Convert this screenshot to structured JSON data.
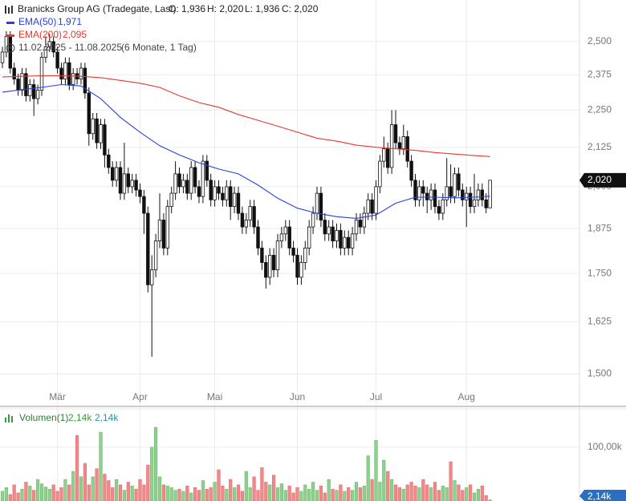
{
  "chart_data": [
    {
      "type": "candlestick",
      "title": "Branicks Group AG (Tradegate, Last)",
      "ohlc_labels": [
        "O: 1,936",
        "H: 2,020",
        "L: 1,936",
        "C: 2,020"
      ],
      "date_range": "11.02.2025 - 11.08.2025",
      "period": "(6 Monate, 1 Tag)",
      "open": [
        2.42,
        2.46,
        2.52,
        2.4,
        2.36,
        2.32,
        2.38,
        2.3,
        2.34,
        2.29,
        2.32,
        2.44,
        2.48,
        2.5,
        2.46,
        2.4,
        2.36,
        2.42,
        2.34,
        2.38,
        2.36,
        2.4,
        2.31,
        2.17,
        2.22,
        2.14,
        2.2,
        2.1,
        2.06,
        2.02,
        2.06,
        1.98,
        2.04,
        2.0,
        2.02,
        1.99,
        1.97,
        1.92,
        1.72,
        1.76,
        1.84,
        1.9,
        1.82,
        1.94,
        1.98,
        2.04,
        2.0,
        2.02,
        1.98,
        2.06,
        2.0,
        1.97,
        2.08,
        2.02,
        1.96,
        2.0,
        1.98,
        1.96,
        2.0,
        1.94,
        1.98,
        1.92,
        1.88,
        1.9,
        1.94,
        1.88,
        1.82,
        1.78,
        1.74,
        1.8,
        1.76,
        1.84,
        1.86,
        1.88,
        1.82,
        1.8,
        1.74,
        1.78,
        1.82,
        1.88,
        1.92,
        1.98,
        1.9,
        1.86,
        1.88,
        1.84,
        1.87,
        1.82,
        1.85,
        1.82,
        1.86,
        1.9,
        1.88,
        1.92,
        1.96,
        1.92,
        2.0,
        2.08,
        2.12,
        2.06,
        2.2,
        2.14,
        2.12,
        2.16,
        2.08,
        2.02,
        1.96,
        2.0,
        1.98,
        1.96,
        1.99,
        1.94,
        1.92,
        1.96,
        2.0,
        1.97,
        2.04,
        1.99,
        1.96,
        1.98,
        1.94,
        1.96,
        1.99,
        1.96,
        1.936
      ],
      "high": [
        2.48,
        2.54,
        2.54,
        2.42,
        2.38,
        2.4,
        2.4,
        2.36,
        2.36,
        2.34,
        2.46,
        2.52,
        2.53,
        2.52,
        2.48,
        2.42,
        2.44,
        2.44,
        2.4,
        2.4,
        2.42,
        2.42,
        2.33,
        2.24,
        2.24,
        2.22,
        2.22,
        2.12,
        2.08,
        2.08,
        2.08,
        2.14,
        2.06,
        2.04,
        2.04,
        2.01,
        1.99,
        1.94,
        1.8,
        1.86,
        1.98,
        1.92,
        1.96,
        2.0,
        2.08,
        2.06,
        2.04,
        2.04,
        2.08,
        2.08,
        2.02,
        2.1,
        2.1,
        2.04,
        2.02,
        2.02,
        2.0,
        2.02,
        2.02,
        2.0,
        2.0,
        1.94,
        1.92,
        1.96,
        1.96,
        1.9,
        1.84,
        1.8,
        1.82,
        1.82,
        1.86,
        1.88,
        1.9,
        1.9,
        1.84,
        1.82,
        1.8,
        1.84,
        1.9,
        1.94,
        2.0,
        2.0,
        1.92,
        1.9,
        1.9,
        1.89,
        1.89,
        1.87,
        1.87,
        1.88,
        1.92,
        1.92,
        1.94,
        1.98,
        1.98,
        2.02,
        2.1,
        2.16,
        2.14,
        2.25,
        2.25,
        2.16,
        2.2,
        2.18,
        2.1,
        2.04,
        2.02,
        2.02,
        2.0,
        2.01,
        2.01,
        1.96,
        1.98,
        2.09,
        2.07,
        2.06,
        2.06,
        2.01,
        2.0,
        2.0,
        2.04,
        2.01,
        2.01,
        1.98,
        2.02
      ],
      "low": [
        2.4,
        2.44,
        2.38,
        2.34,
        2.3,
        2.3,
        2.28,
        2.28,
        2.23,
        2.27,
        2.3,
        2.42,
        2.46,
        2.44,
        2.38,
        2.34,
        2.34,
        2.32,
        2.32,
        2.34,
        2.34,
        2.29,
        2.13,
        2.15,
        2.12,
        2.12,
        2.06,
        2.04,
        2.0,
        2.0,
        1.96,
        1.96,
        1.98,
        1.98,
        1.97,
        1.95,
        1.86,
        1.7,
        1.54,
        1.74,
        1.82,
        1.8,
        1.8,
        1.92,
        1.96,
        1.98,
        1.98,
        1.96,
        1.96,
        1.98,
        1.95,
        1.95,
        2.0,
        1.94,
        1.94,
        1.96,
        1.94,
        1.94,
        1.9,
        1.92,
        1.9,
        1.86,
        1.86,
        1.88,
        1.86,
        1.8,
        1.76,
        1.71,
        1.72,
        1.74,
        1.74,
        1.82,
        1.84,
        1.8,
        1.78,
        1.72,
        1.72,
        1.76,
        1.8,
        1.86,
        1.9,
        1.88,
        1.84,
        1.84,
        1.82,
        1.82,
        1.8,
        1.8,
        1.8,
        1.8,
        1.84,
        1.86,
        1.86,
        1.9,
        1.9,
        1.9,
        1.98,
        2.06,
        2.04,
        2.04,
        2.12,
        2.1,
        2.1,
        2.06,
        2.0,
        1.94,
        1.94,
        1.94,
        1.92,
        1.93,
        1.92,
        1.9,
        1.9,
        1.94,
        1.95,
        1.95,
        1.97,
        1.94,
        1.88,
        1.92,
        1.92,
        1.94,
        1.94,
        1.92,
        1.936
      ],
      "close": [
        2.46,
        2.52,
        2.4,
        2.36,
        2.32,
        2.38,
        2.3,
        2.34,
        2.29,
        2.32,
        2.44,
        2.48,
        2.5,
        2.46,
        2.4,
        2.36,
        2.42,
        2.34,
        2.38,
        2.36,
        2.4,
        2.31,
        2.17,
        2.22,
        2.14,
        2.2,
        2.1,
        2.06,
        2.02,
        2.06,
        1.98,
        2.04,
        2.0,
        2.02,
        1.99,
        1.97,
        1.92,
        1.72,
        1.76,
        1.84,
        1.9,
        1.82,
        1.94,
        1.98,
        2.04,
        2.0,
        2.02,
        1.98,
        2.06,
        2.0,
        1.97,
        2.08,
        2.02,
        1.96,
        2.0,
        1.98,
        1.96,
        2.0,
        1.94,
        1.98,
        1.92,
        1.88,
        1.9,
        1.94,
        1.88,
        1.82,
        1.78,
        1.74,
        1.8,
        1.76,
        1.84,
        1.86,
        1.88,
        1.82,
        1.8,
        1.74,
        1.78,
        1.82,
        1.88,
        1.92,
        1.98,
        1.9,
        1.86,
        1.88,
        1.84,
        1.87,
        1.82,
        1.85,
        1.82,
        1.86,
        1.9,
        1.88,
        1.92,
        1.96,
        1.92,
        2.0,
        2.08,
        2.12,
        2.06,
        2.2,
        2.14,
        2.12,
        2.16,
        2.08,
        2.02,
        1.96,
        2.0,
        1.98,
        1.96,
        1.99,
        1.94,
        1.92,
        1.96,
        2.0,
        1.97,
        2.04,
        1.99,
        1.96,
        1.98,
        1.94,
        1.96,
        1.99,
        1.96,
        1.936,
        2.02
      ],
      "up_color": "#ffffff",
      "down_color": "#111111",
      "candle_stroke": "#111111",
      "series": [
        {
          "name": "EMA(50)",
          "value_label": "1,971",
          "color": "#2a3fe0",
          "x": [
            0,
            5,
            10,
            15,
            20,
            25,
            30,
            35,
            40,
            45,
            50,
            55,
            60,
            65,
            70,
            75,
            80,
            85,
            90,
            95,
            100,
            105,
            110,
            115,
            120,
            124
          ],
          "values": [
            2.313,
            2.322,
            2.33,
            2.34,
            2.335,
            2.29,
            2.225,
            2.175,
            2.13,
            2.1,
            2.075,
            2.055,
            2.04,
            2.005,
            1.965,
            1.935,
            1.92,
            1.91,
            1.905,
            1.915,
            1.95,
            1.968,
            1.968,
            1.966,
            1.968,
            1.971
          ]
        },
        {
          "name": "EMA(200)",
          "value_label": "2,095",
          "color": "#e8372f",
          "x": [
            0,
            5,
            10,
            15,
            20,
            25,
            30,
            35,
            40,
            45,
            50,
            55,
            60,
            65,
            70,
            75,
            80,
            85,
            90,
            95,
            100,
            105,
            110,
            115,
            120,
            124
          ],
          "values": [
            2.368,
            2.37,
            2.372,
            2.372,
            2.37,
            2.365,
            2.355,
            2.345,
            2.33,
            2.3,
            2.276,
            2.26,
            2.235,
            2.215,
            2.195,
            2.175,
            2.155,
            2.145,
            2.132,
            2.125,
            2.12,
            2.115,
            2.108,
            2.103,
            2.098,
            2.095
          ]
        }
      ],
      "xticks": [
        {
          "value": 14,
          "label": "Mär"
        },
        {
          "value": 35,
          "label": "Apr"
        },
        {
          "value": 54,
          "label": "Mai"
        },
        {
          "value": 75,
          "label": "Jun"
        },
        {
          "value": 95,
          "label": "Jul"
        },
        {
          "value": 118,
          "label": "Aug"
        }
      ],
      "ylim": [
        1.475,
        2.665
      ],
      "log_scale": true,
      "yticks": [
        {
          "value": 1.5,
          "label": "1,500"
        },
        {
          "value": 1.625,
          "label": "1,625"
        },
        {
          "value": 1.75,
          "label": "1,750"
        },
        {
          "value": 1.875,
          "label": "1,875"
        },
        {
          "value": 2,
          "label": "2,000"
        },
        {
          "value": 2.125,
          "label": "2,125"
        },
        {
          "value": 2.25,
          "label": "2,250"
        },
        {
          "value": 2.375,
          "label": "2,375"
        },
        {
          "value": 2.5,
          "label": "2,500"
        }
      ],
      "last_label": "2,020",
      "grid": true
    },
    {
      "type": "bar",
      "title": "Volumen(1)",
      "legend_values": [
        "2,14k",
        "2,14k"
      ],
      "values": [
        18,
        25,
        12,
        30,
        15,
        22,
        35,
        28,
        20,
        40,
        32,
        26,
        22,
        30,
        18,
        25,
        40,
        30,
        55,
        122,
        45,
        70,
        30,
        45,
        60,
        128,
        50,
        38,
        25,
        40,
        30,
        20,
        35,
        28,
        22,
        40,
        30,
        67,
        100,
        137,
        45,
        30,
        28,
        25,
        20,
        22,
        18,
        28,
        15,
        25,
        20,
        38,
        22,
        25,
        35,
        58,
        28,
        22,
        40,
        25,
        30,
        18,
        55,
        25,
        45,
        20,
        62,
        35,
        30,
        48,
        25,
        32,
        20,
        28,
        15,
        25,
        18,
        30,
        22,
        35,
        20,
        28,
        15,
        40,
        22,
        20,
        30,
        18,
        25,
        20,
        35,
        25,
        28,
        84,
        40,
        113,
        35,
        76,
        55,
        40,
        30,
        25,
        22,
        30,
        35,
        28,
        25,
        40,
        30,
        25,
        35,
        20,
        28,
        25,
        73,
        38,
        30,
        20,
        25,
        30,
        15,
        22,
        28,
        10,
        2.14
      ],
      "up_color": "#8fd08f",
      "down_color": "#f08a8a",
      "ylim": [
        0,
        170
      ],
      "yticks": [
        {
          "value": 100,
          "label": "100,00k"
        }
      ],
      "last_label": "2,14k",
      "grid": true
    }
  ]
}
